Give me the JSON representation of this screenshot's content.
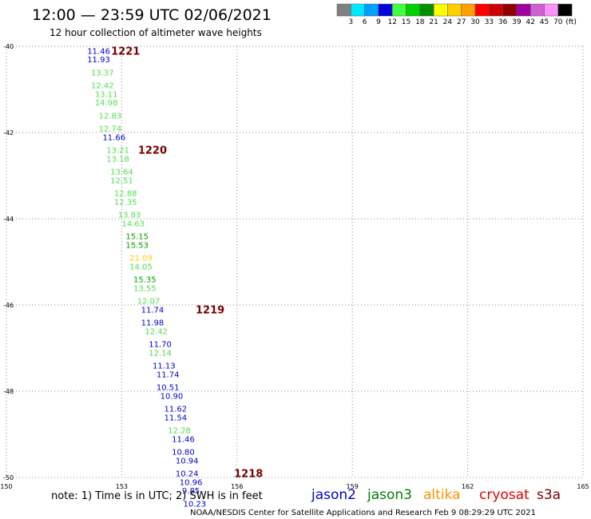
{
  "header": {
    "title": "12:00 — 23:59 UTC 02/06/2021",
    "subtitle": "12 hour collection of altimeter wave heights"
  },
  "colorbar": {
    "unit": "(ft)",
    "labels": [
      "3",
      "6",
      "9",
      "12",
      "15",
      "18",
      "21",
      "24",
      "27",
      "30",
      "33",
      "36",
      "39",
      "42",
      "45",
      "70"
    ],
    "colors": [
      "#7f7f7f",
      "#00e8ff",
      "#00a0ff",
      "#0000d8",
      "#40ff40",
      "#00d000",
      "#009000",
      "#ffff00",
      "#ffd000",
      "#ffa000",
      "#ff0000",
      "#d00000",
      "#900000",
      "#a000a0",
      "#d060d0",
      "#ff90ff",
      "#000000"
    ]
  },
  "footer": {
    "note": "note:  1) Time is in UTC;  2) SWH is in feet",
    "credit": "NOAA/NESDIS Center for Satellite Applications and Research    Feb  9 08:29:29 UTC 2021",
    "satellites": [
      {
        "name": "jason2",
        "color": "#0000d0"
      },
      {
        "name": "jason3",
        "color": "#008000"
      },
      {
        "name": "altika",
        "color": "#ff9000"
      },
      {
        "name": "cryosat",
        "color": "#e00000"
      },
      {
        "name": "s3a",
        "color": "#7a0000"
      }
    ]
  },
  "chart_data": {
    "type": "scatter",
    "title": "12:00 — 23:59 UTC 02/06/2021",
    "subtitle": "12 hour collection of altimeter wave heights",
    "xlim": [
      150,
      165
    ],
    "ylim": [
      -50,
      -40
    ],
    "x_ticks": [
      "150",
      "153",
      "156",
      "159",
      "162",
      "165"
    ],
    "y_ticks": [
      "-40",
      "-42",
      "-44",
      "-46",
      "-48",
      "-50"
    ],
    "grid": true,
    "series": [
      {
        "name": "swh_ft",
        "points": [
          {
            "x": 152.4,
            "y": -40.1,
            "label": "11.46",
            "color": "#0000d0"
          },
          {
            "x": 152.4,
            "y": -40.3,
            "label": "11.93",
            "color": "#0000d0"
          },
          {
            "x": 152.5,
            "y": -40.6,
            "label": "13.37",
            "color": "#50e050"
          },
          {
            "x": 152.5,
            "y": -40.9,
            "label": "12.42",
            "color": "#50e050"
          },
          {
            "x": 152.6,
            "y": -41.1,
            "label": "13.11",
            "color": "#50e050"
          },
          {
            "x": 152.6,
            "y": -41.3,
            "label": "14.98",
            "color": "#50e050"
          },
          {
            "x": 152.7,
            "y": -41.6,
            "label": "12.83",
            "color": "#50e050"
          },
          {
            "x": 152.7,
            "y": -41.9,
            "label": "12.74",
            "color": "#50e050"
          },
          {
            "x": 152.8,
            "y": -42.1,
            "label": "11.66",
            "color": "#0000d0"
          },
          {
            "x": 152.9,
            "y": -42.4,
            "label": "13.21",
            "color": "#50e050"
          },
          {
            "x": 152.9,
            "y": -42.6,
            "label": "13.18",
            "color": "#50e050"
          },
          {
            "x": 153.0,
            "y": -42.9,
            "label": "13.64",
            "color": "#50e050"
          },
          {
            "x": 153.0,
            "y": -43.1,
            "label": "12.51",
            "color": "#50e050"
          },
          {
            "x": 153.1,
            "y": -43.4,
            "label": "12.88",
            "color": "#50e050"
          },
          {
            "x": 153.1,
            "y": -43.6,
            "label": "12.35",
            "color": "#50e050"
          },
          {
            "x": 153.2,
            "y": -43.9,
            "label": "13.83",
            "color": "#50e050"
          },
          {
            "x": 153.3,
            "y": -44.1,
            "label": "14.63",
            "color": "#50e050"
          },
          {
            "x": 153.4,
            "y": -44.4,
            "label": "15.15",
            "color": "#00a000"
          },
          {
            "x": 153.4,
            "y": -44.6,
            "label": "15.53",
            "color": "#00a000"
          },
          {
            "x": 153.5,
            "y": -44.9,
            "label": "21.09",
            "color": "#ffd000"
          },
          {
            "x": 153.5,
            "y": -45.1,
            "label": "14.05",
            "color": "#50e050"
          },
          {
            "x": 153.6,
            "y": -45.4,
            "label": "15.35",
            "color": "#00a000"
          },
          {
            "x": 153.6,
            "y": -45.6,
            "label": "13.55",
            "color": "#50e050"
          },
          {
            "x": 153.7,
            "y": -45.9,
            "label": "12.07",
            "color": "#50e050"
          },
          {
            "x": 153.8,
            "y": -46.1,
            "label": "11.74",
            "color": "#0000d0"
          },
          {
            "x": 153.8,
            "y": -46.4,
            "label": "11.98",
            "color": "#0000d0"
          },
          {
            "x": 153.9,
            "y": -46.6,
            "label": "12.42",
            "color": "#50e050"
          },
          {
            "x": 154.0,
            "y": -46.9,
            "label": "11.70",
            "color": "#0000d0"
          },
          {
            "x": 154.0,
            "y": -47.1,
            "label": "12.14",
            "color": "#50e050"
          },
          {
            "x": 154.1,
            "y": -47.4,
            "label": "11.13",
            "color": "#0000d0"
          },
          {
            "x": 154.2,
            "y": -47.6,
            "label": "11.74",
            "color": "#0000d0"
          },
          {
            "x": 154.2,
            "y": -47.9,
            "label": "10.51",
            "color": "#0000d0"
          },
          {
            "x": 154.3,
            "y": -48.1,
            "label": "10.90",
            "color": "#0000d0"
          },
          {
            "x": 154.4,
            "y": -48.4,
            "label": "11.62",
            "color": "#0000d0"
          },
          {
            "x": 154.4,
            "y": -48.6,
            "label": "11.54",
            "color": "#0000d0"
          },
          {
            "x": 154.5,
            "y": -48.9,
            "label": "12.28",
            "color": "#50e050"
          },
          {
            "x": 154.6,
            "y": -49.1,
            "label": "11.46",
            "color": "#0000d0"
          },
          {
            "x": 154.6,
            "y": -49.4,
            "label": "10.80",
            "color": "#0000d0"
          },
          {
            "x": 154.7,
            "y": -49.6,
            "label": "10.94",
            "color": "#0000d0"
          },
          {
            "x": 154.7,
            "y": -49.9,
            "label": "10.24",
            "color": "#0000d0"
          },
          {
            "x": 154.8,
            "y": -50.1,
            "label": "10.96",
            "color": "#0000d0"
          },
          {
            "x": 154.8,
            "y": -50.3,
            "label": "9.85",
            "color": "#0000d0"
          },
          {
            "x": 154.9,
            "y": -50.6,
            "label": "10.23",
            "color": "#0000d0"
          }
        ]
      }
    ],
    "time_labels": [
      {
        "x": 153.1,
        "y": -40.1,
        "label": "1221"
      },
      {
        "x": 153.8,
        "y": -42.4,
        "label": "1220"
      },
      {
        "x": 155.3,
        "y": -46.1,
        "label": "1219"
      },
      {
        "x": 156.3,
        "y": -49.9,
        "label": "1218"
      }
    ]
  }
}
